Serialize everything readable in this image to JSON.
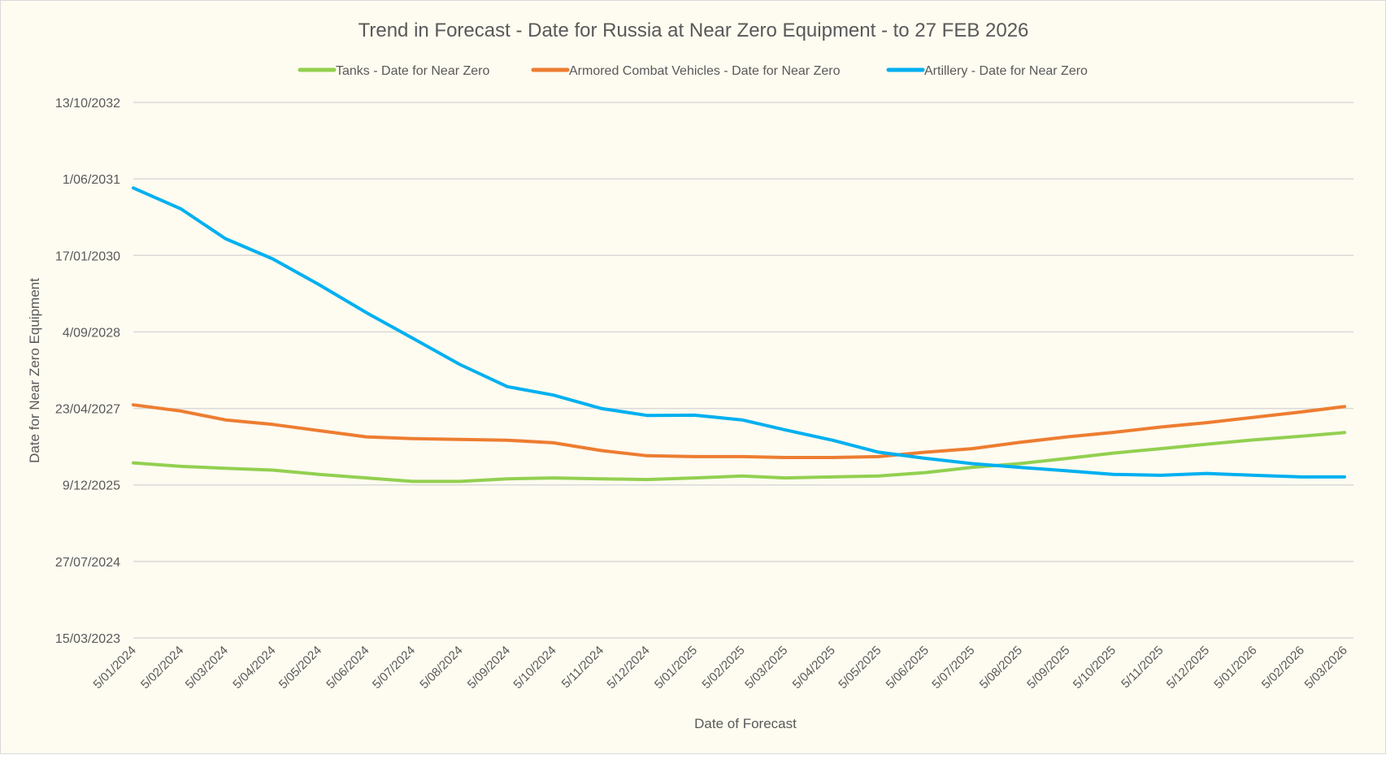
{
  "chart_data": {
    "type": "line",
    "title": "Trend in Forecast - Date for Russia at Near Zero Equipment - to 27 FEB 2026",
    "xlabel": "Date of Forecast",
    "ylabel": "Date for Near Zero Equipment",
    "legend_position": "top",
    "grid": true,
    "xlim": [
      "2024-01-05",
      "2026-03-05"
    ],
    "ylim": [
      "2023-03-15",
      "2032-10-13"
    ],
    "x_tick_labels": [
      "5/01/2024",
      "5/02/2024",
      "5/03/2024",
      "5/04/2024",
      "5/05/2024",
      "5/06/2024",
      "5/07/2024",
      "5/08/2024",
      "5/09/2024",
      "5/10/2024",
      "5/11/2024",
      "5/12/2024",
      "5/01/2025",
      "5/02/2025",
      "5/03/2025",
      "5/04/2025",
      "5/05/2025",
      "5/06/2025",
      "5/07/2025",
      "5/08/2025",
      "5/09/2025",
      "5/10/2025",
      "5/11/2025",
      "5/12/2025",
      "5/01/2026",
      "5/02/2026",
      "5/03/2026"
    ],
    "y_ticks": [
      {
        "label": "15/03/2023",
        "value": "2023-03-15"
      },
      {
        "label": "27/07/2024",
        "value": "2024-07-27"
      },
      {
        "label": "9/12/2025",
        "value": "2025-12-09"
      },
      {
        "label": "23/04/2027",
        "value": "2027-04-23"
      },
      {
        "label": "4/09/2028",
        "value": "2028-09-04"
      },
      {
        "label": "17/01/2030",
        "value": "2030-01-17"
      },
      {
        "label": "1/06/2031",
        "value": "2031-06-01"
      },
      {
        "label": "13/10/2032",
        "value": "2032-10-13"
      }
    ],
    "x": [
      "2024-01-05",
      "2024-02-05",
      "2024-03-05",
      "2024-04-05",
      "2024-05-05",
      "2024-06-05",
      "2024-07-05",
      "2024-08-05",
      "2024-09-05",
      "2024-10-05",
      "2024-11-05",
      "2024-12-05",
      "2025-01-05",
      "2025-02-05",
      "2025-03-05",
      "2025-04-05",
      "2025-05-05",
      "2025-06-05",
      "2025-07-05",
      "2025-08-05",
      "2025-09-05",
      "2025-10-05",
      "2025-11-05",
      "2025-12-05",
      "2026-01-05",
      "2026-02-05",
      "2026-03-05"
    ],
    "series": [
      {
        "name": "Tanks - Date for Near Zero",
        "color": "#92d050",
        "values": [
          "2026-05-02",
          "2026-04-09",
          "2026-03-28",
          "2026-03-16",
          "2026-02-16",
          "2026-01-24",
          "2026-01-01",
          "2026-01-01",
          "2026-01-18",
          "2026-01-24",
          "2026-01-18",
          "2026-01-13",
          "2026-01-24",
          "2026-02-05",
          "2026-01-24",
          "2026-01-30",
          "2026-02-05",
          "2026-02-28",
          "2026-04-03",
          "2026-04-27",
          "2026-05-31",
          "2026-07-05",
          "2026-08-03",
          "2026-09-01",
          "2026-09-30",
          "2026-10-24",
          "2026-11-16"
        ]
      },
      {
        "name": "Armored Combat Vehicles - Date for Near Zero",
        "color": "#ed7d31",
        "values": [
          "2027-05-16",
          "2027-04-06",
          "2027-02-07",
          "2027-01-08",
          "2026-11-29",
          "2026-10-19",
          "2026-10-08",
          "2026-10-02",
          "2026-09-27",
          "2026-09-10",
          "2026-07-22",
          "2026-06-18",
          "2026-06-12",
          "2026-06-12",
          "2026-06-06",
          "2026-06-06",
          "2026-06-12",
          "2026-07-11",
          "2026-08-03",
          "2026-09-13",
          "2026-10-19",
          "2026-11-17",
          "2026-12-22",
          "2027-01-20",
          "2027-02-24",
          "2027-03-31",
          "2027-05-05"
        ]
      },
      {
        "name": "Artillery - Date for Near Zero",
        "color": "#00b0f0",
        "values": [
          "2031-04-03",
          "2030-11-17",
          "2030-05-07",
          "2029-12-25",
          "2029-07-11",
          "2029-01-08",
          "2028-07-26",
          "2028-02-04",
          "2027-09-12",
          "2027-07-19",
          "2027-04-23",
          "2027-03-08",
          "2027-03-10",
          "2027-02-07",
          "2026-12-04",
          "2026-09-27",
          "2026-07-11",
          "2026-05-31",
          "2026-04-27",
          "2026-04-03",
          "2026-03-11",
          "2026-02-16",
          "2026-02-10",
          "2026-02-22",
          "2026-02-10",
          "2026-01-30",
          "2026-01-30"
        ]
      }
    ]
  }
}
